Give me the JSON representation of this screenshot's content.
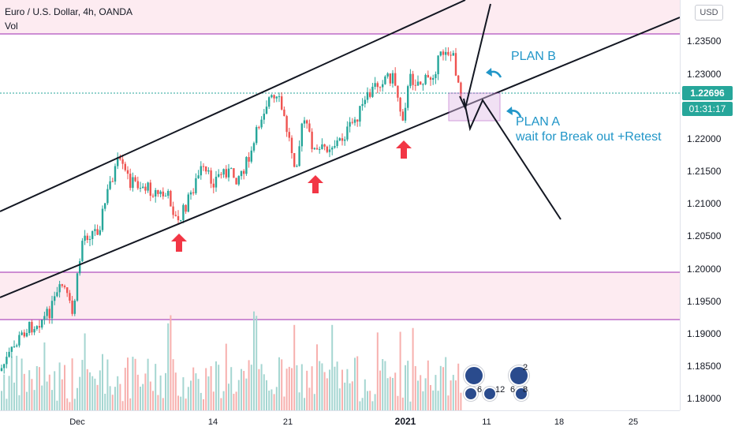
{
  "legend": {
    "symbol": "Euro / U.S. Dollar, 4h, OANDA",
    "volume_label": "Vol"
  },
  "price_axis": {
    "currency_button": "USD",
    "ticks": [
      "1.23500",
      "1.23000",
      "1.22000",
      "1.21500",
      "1.21000",
      "1.20500",
      "1.20000",
      "1.19500",
      "1.19000",
      "1.18500",
      "1.18000"
    ],
    "last_price": "1.22696",
    "countdown": "01:31:17",
    "last_price_color": "#26a69a",
    "countdown_color": "#26a69a"
  },
  "time_axis": {
    "ticks": [
      {
        "label": "Dec",
        "bold": false
      },
      {
        "label": "14",
        "bold": false
      },
      {
        "label": "21",
        "bold": false
      },
      {
        "label": "2021",
        "bold": true
      },
      {
        "label": "11",
        "bold": false
      },
      {
        "label": "18",
        "bold": false
      },
      {
        "label": "25",
        "bold": false
      }
    ]
  },
  "annotations": {
    "plan_b": "PLAN B",
    "plan_a_title": "PLAN A",
    "plan_a_text": "wait for Break out +Retest"
  },
  "events": [
    {
      "count": "6"
    },
    {
      "count": "12"
    },
    {
      "count": "6"
    },
    {
      "count": "2"
    },
    {
      "count": "8"
    }
  ],
  "colors": {
    "up": "#26a69a",
    "down": "#ef5350",
    "zone_line": "#9c27b0",
    "zone_fill": "#fce4ec",
    "annotation_blue": "#2196c8",
    "arrow_red": "#f23645"
  },
  "chart_data": {
    "type": "candlestick",
    "title": "Euro / U.S. Dollar, 4h, OANDA",
    "ylim": [
      1.1775,
      1.2412
    ],
    "x_ticks": [
      "Dec",
      "14",
      "21",
      "2021",
      "11",
      "18",
      "25"
    ],
    "horizontal_levels": [
      1.236,
      1.1995,
      1.1925
    ],
    "shaded_zones": [
      [
        1.236,
        1.2412
      ],
      [
        1.1925,
        1.1995
      ]
    ],
    "last_price": 1.22696,
    "trendline_points": [
      {
        "date": "Nov 25",
        "value": 1.192
      },
      {
        "date": "Jan 07",
        "value": 1.222
      }
    ]
  }
}
